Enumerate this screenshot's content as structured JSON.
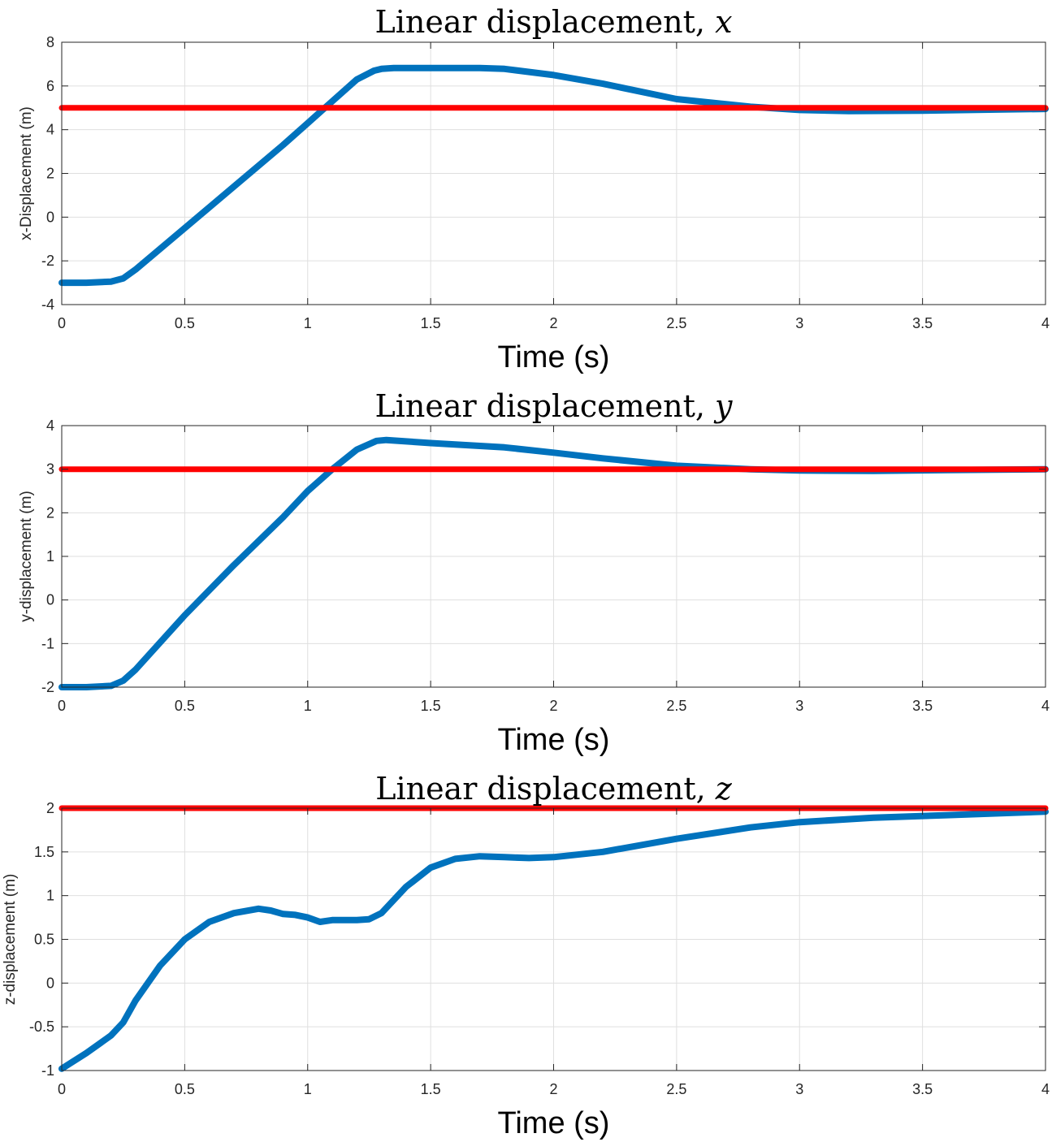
{
  "chart_data": [
    {
      "type": "line",
      "title": "Linear displacement, ",
      "title_var": "x",
      "xlabel": "Time (s)",
      "ylabel": "x-Displacement (m)",
      "xlim": [
        0,
        4
      ],
      "ylim": [
        -4,
        8
      ],
      "xticks": [
        0,
        0.5,
        1,
        1.5,
        2,
        2.5,
        3,
        3.5,
        4
      ],
      "yticks": [
        -4,
        -2,
        0,
        2,
        4,
        6,
        8
      ],
      "grid": true,
      "series": [
        {
          "color": "#0072BD",
          "x": [
            0,
            0.1,
            0.2,
            0.25,
            0.3,
            0.5,
            0.7,
            0.9,
            1.0,
            1.1,
            1.2,
            1.27,
            1.3,
            1.35,
            1.5,
            1.7,
            1.8,
            2.0,
            2.2,
            2.5,
            2.8,
            3.0,
            3.2,
            3.5,
            3.8,
            4.0
          ],
          "y": [
            -3,
            -3,
            -2.95,
            -2.8,
            -2.4,
            -0.5,
            1.4,
            3.3,
            4.3,
            5.3,
            6.3,
            6.7,
            6.78,
            6.82,
            6.82,
            6.82,
            6.78,
            6.5,
            6.1,
            5.4,
            5.05,
            4.9,
            4.85,
            4.87,
            4.92,
            4.95
          ]
        },
        {
          "color": "#FF0000",
          "x": [
            0,
            4
          ],
          "y": [
            5,
            5
          ]
        }
      ]
    },
    {
      "type": "line",
      "title": "Linear displacement, ",
      "title_var": "y",
      "xlabel": "Time (s)",
      "ylabel": "y-displacement (m)",
      "xlim": [
        0,
        4
      ],
      "ylim": [
        -2,
        4
      ],
      "xticks": [
        0,
        0.5,
        1,
        1.5,
        2,
        2.5,
        3,
        3.5,
        4
      ],
      "yticks": [
        -2,
        -1,
        0,
        1,
        2,
        3,
        4
      ],
      "grid": true,
      "series": [
        {
          "color": "#0072BD",
          "x": [
            0,
            0.1,
            0.2,
            0.25,
            0.3,
            0.5,
            0.7,
            0.9,
            1.0,
            1.1,
            1.2,
            1.28,
            1.32,
            1.5,
            1.8,
            2.0,
            2.2,
            2.5,
            2.8,
            3.0,
            3.3,
            3.6,
            4.0
          ],
          "y": [
            -2,
            -2,
            -1.97,
            -1.85,
            -1.6,
            -0.35,
            0.8,
            1.9,
            2.5,
            3.0,
            3.45,
            3.65,
            3.67,
            3.6,
            3.5,
            3.38,
            3.25,
            3.08,
            3.0,
            2.97,
            2.96,
            2.98,
            3.0
          ]
        },
        {
          "color": "#FF0000",
          "x": [
            0,
            4
          ],
          "y": [
            3,
            3
          ]
        }
      ]
    },
    {
      "type": "line",
      "title": "Linear displacement, ",
      "title_var": "z",
      "xlabel": "Time (s)",
      "ylabel": "z-displacement (m)",
      "xlim": [
        0,
        4
      ],
      "ylim": [
        -1,
        2
      ],
      "xticks": [
        0,
        0.5,
        1,
        1.5,
        2,
        2.5,
        3,
        3.5,
        4
      ],
      "yticks": [
        -1,
        -0.5,
        0,
        0.5,
        1,
        1.5,
        2
      ],
      "ytick_labels": [
        "-1",
        "-0.5",
        "0",
        "0.5",
        "1",
        "1.5",
        "2"
      ],
      "grid": true,
      "series": [
        {
          "color": "#0072BD",
          "x": [
            0,
            0.1,
            0.2,
            0.25,
            0.3,
            0.4,
            0.5,
            0.6,
            0.7,
            0.8,
            0.85,
            0.9,
            0.95,
            1.0,
            1.05,
            1.1,
            1.15,
            1.2,
            1.25,
            1.3,
            1.4,
            1.5,
            1.6,
            1.7,
            1.8,
            1.9,
            2.0,
            2.2,
            2.5,
            2.8,
            3.0,
            3.3,
            3.6,
            4.0
          ],
          "y": [
            -0.98,
            -0.8,
            -0.6,
            -0.45,
            -0.2,
            0.2,
            0.5,
            0.7,
            0.8,
            0.85,
            0.83,
            0.79,
            0.78,
            0.75,
            0.7,
            0.72,
            0.72,
            0.72,
            0.73,
            0.8,
            1.1,
            1.32,
            1.42,
            1.45,
            1.44,
            1.43,
            1.44,
            1.5,
            1.65,
            1.78,
            1.84,
            1.89,
            1.92,
            1.96
          ]
        },
        {
          "color": "#FF0000",
          "x": [
            0,
            4
          ],
          "y": [
            2,
            2
          ]
        }
      ]
    }
  ]
}
